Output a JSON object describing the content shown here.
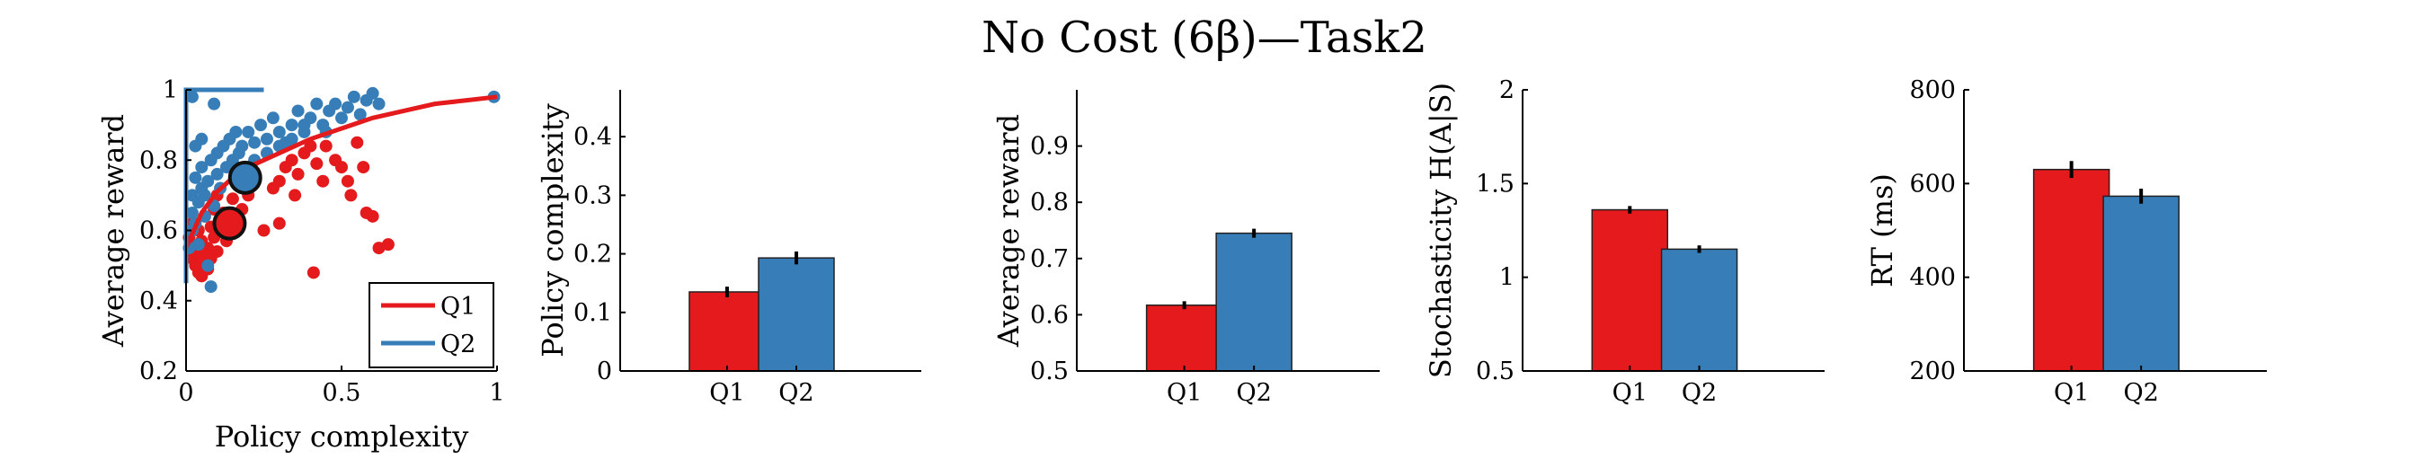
{
  "figure_title": "No Cost (6β)—Task2",
  "colors": {
    "Q1": "#e41a1c",
    "Q2": "#377eb8",
    "axis": "#000000",
    "marker_edge": "#111111"
  },
  "chart_data": [
    {
      "type": "scatter",
      "title": "",
      "xlabel": "Policy complexity",
      "ylabel": "Average reward",
      "xlim": [
        0,
        1
      ],
      "ylim": [
        0.2,
        1
      ],
      "xticks": [
        "0",
        "0.5",
        "1"
      ],
      "yticks": [
        "0.2",
        "0.4",
        "0.6",
        "0.8",
        "1"
      ],
      "legend": {
        "placement": "bottom-right",
        "entries": [
          "Q1",
          "Q2"
        ]
      },
      "series": [
        {
          "name": "Q1",
          "points": [
            [
              0.01,
              0.58
            ],
            [
              0.02,
              0.52
            ],
            [
              0.02,
              0.62
            ],
            [
              0.03,
              0.5
            ],
            [
              0.03,
              0.55
            ],
            [
              0.04,
              0.48
            ],
            [
              0.04,
              0.6
            ],
            [
              0.05,
              0.47
            ],
            [
              0.05,
              0.53
            ],
            [
              0.05,
              0.57
            ],
            [
              0.06,
              0.5
            ],
            [
              0.06,
              0.64
            ],
            [
              0.07,
              0.49
            ],
            [
              0.07,
              0.55
            ],
            [
              0.08,
              0.52
            ],
            [
              0.08,
              0.61
            ],
            [
              0.09,
              0.58
            ],
            [
              0.09,
              0.66
            ],
            [
              0.1,
              0.54
            ],
            [
              0.1,
              0.7
            ],
            [
              0.11,
              0.6
            ],
            [
              0.12,
              0.65
            ],
            [
              0.13,
              0.57
            ],
            [
              0.14,
              0.63
            ],
            [
              0.15,
              0.69
            ],
            [
              0.16,
              0.6
            ],
            [
              0.17,
              0.74
            ],
            [
              0.18,
              0.66
            ],
            [
              0.2,
              0.7
            ],
            [
              0.22,
              0.76
            ],
            [
              0.25,
              0.6
            ],
            [
              0.28,
              0.72
            ],
            [
              0.3,
              0.74
            ],
            [
              0.32,
              0.78
            ],
            [
              0.34,
              0.8
            ],
            [
              0.36,
              0.76
            ],
            [
              0.38,
              0.82
            ],
            [
              0.4,
              0.84
            ],
            [
              0.41,
              0.48
            ],
            [
              0.42,
              0.79
            ],
            [
              0.45,
              0.84
            ],
            [
              0.48,
              0.8
            ],
            [
              0.5,
              0.78
            ],
            [
              0.52,
              0.74
            ],
            [
              0.55,
              0.85
            ],
            [
              0.57,
              0.78
            ],
            [
              0.58,
              0.65
            ],
            [
              0.6,
              0.64
            ],
            [
              0.62,
              0.55
            ],
            [
              0.65,
              0.56
            ],
            [
              0.3,
              0.62
            ],
            [
              0.35,
              0.7
            ],
            [
              0.44,
              0.74
            ],
            [
              0.53,
              0.7
            ]
          ]
        },
        {
          "name": "Q2",
          "points": [
            [
              0.01,
              0.55
            ],
            [
              0.02,
              0.6
            ],
            [
              0.02,
              0.65
            ],
            [
              0.02,
              0.7
            ],
            [
              0.03,
              0.75
            ],
            [
              0.03,
              0.62
            ],
            [
              0.04,
              0.68
            ],
            [
              0.04,
              0.56
            ],
            [
              0.05,
              0.72
            ],
            [
              0.05,
              0.78
            ],
            [
              0.06,
              0.64
            ],
            [
              0.06,
              0.7
            ],
            [
              0.07,
              0.5
            ],
            [
              0.07,
              0.74
            ],
            [
              0.08,
              0.44
            ],
            [
              0.08,
              0.8
            ],
            [
              0.09,
              0.67
            ],
            [
              0.1,
              0.76
            ],
            [
              0.1,
              0.82
            ],
            [
              0.11,
              0.72
            ],
            [
              0.12,
              0.84
            ],
            [
              0.13,
              0.78
            ],
            [
              0.14,
              0.86
            ],
            [
              0.15,
              0.8
            ],
            [
              0.16,
              0.88
            ],
            [
              0.17,
              0.82
            ],
            [
              0.18,
              0.84
            ],
            [
              0.2,
              0.88
            ],
            [
              0.22,
              0.85
            ],
            [
              0.24,
              0.9
            ],
            [
              0.26,
              0.86
            ],
            [
              0.28,
              0.92
            ],
            [
              0.3,
              0.88
            ],
            [
              0.32,
              0.85
            ],
            [
              0.34,
              0.9
            ],
            [
              0.36,
              0.94
            ],
            [
              0.38,
              0.9
            ],
            [
              0.4,
              0.92
            ],
            [
              0.42,
              0.96
            ],
            [
              0.44,
              0.9
            ],
            [
              0.46,
              0.94
            ],
            [
              0.48,
              0.96
            ],
            [
              0.5,
              0.92
            ],
            [
              0.52,
              0.95
            ],
            [
              0.54,
              0.98
            ],
            [
              0.56,
              0.93
            ],
            [
              0.58,
              0.97
            ],
            [
              0.6,
              0.99
            ],
            [
              0.62,
              0.96
            ],
            [
              0.22,
              0.8
            ],
            [
              0.26,
              0.82
            ],
            [
              0.3,
              0.84
            ],
            [
              0.34,
              0.86
            ],
            [
              0.38,
              0.88
            ],
            [
              0.45,
              0.88
            ],
            [
              0.02,
              0.98
            ],
            [
              0.09,
              0.96
            ],
            [
              0.99,
              0.98
            ],
            [
              0.03,
              0.84
            ],
            [
              0.05,
              0.86
            ]
          ]
        }
      ],
      "curves": [
        {
          "series": "Q1",
          "x": [
            0.0,
            0.05,
            0.1,
            0.15,
            0.2,
            0.3,
            0.4,
            0.5,
            0.6,
            0.7,
            0.8,
            0.9,
            1.0
          ],
          "y": [
            0.55,
            0.65,
            0.71,
            0.75,
            0.78,
            0.82,
            0.86,
            0.89,
            0.92,
            0.94,
            0.96,
            0.97,
            0.98
          ]
        },
        {
          "series": "Q2",
          "x": [
            0.0,
            0.0,
            0.25
          ],
          "y": [
            0.45,
            1.0,
            1.0
          ]
        }
      ],
      "means": [
        {
          "series": "Q1",
          "x": 0.14,
          "y": 0.62
        },
        {
          "series": "Q2",
          "x": 0.19,
          "y": 0.75
        }
      ]
    },
    {
      "type": "bar",
      "title": "",
      "xlabel": "",
      "ylabel": "Policy complexity",
      "categories": [
        "Q1",
        "Q2"
      ],
      "values": [
        0.135,
        0.193
      ],
      "errors": [
        0.009,
        0.011
      ],
      "ylim": [
        0,
        0.48
      ],
      "yticks": [
        "0",
        "0.1",
        "0.2",
        "0.3",
        "0.4"
      ]
    },
    {
      "type": "bar",
      "title": "",
      "xlabel": "",
      "ylabel": "Average reward",
      "categories": [
        "Q1",
        "Q2"
      ],
      "values": [
        0.617,
        0.745
      ],
      "errors": [
        0.007,
        0.008
      ],
      "ylim": [
        0.5,
        1.0
      ],
      "yticks": [
        "0.5",
        "0.6",
        "0.7",
        "0.8",
        "0.9"
      ]
    },
    {
      "type": "bar",
      "title": "",
      "xlabel": "",
      "ylabel": "Stochasticity H(A|S)",
      "categories": [
        "Q1",
        "Q2"
      ],
      "values": [
        1.36,
        1.15
      ],
      "errors": [
        0.02,
        0.02
      ],
      "ylim": [
        0.5,
        2.0
      ],
      "yticks": [
        "0.5",
        "1",
        "1.5",
        "2"
      ]
    },
    {
      "type": "bar",
      "title": "",
      "xlabel": "",
      "ylabel": "RT (ms)",
      "categories": [
        "Q1",
        "Q2"
      ],
      "values": [
        630,
        573
      ],
      "errors": [
        18,
        16
      ],
      "ylim": [
        200,
        800
      ],
      "yticks": [
        "200",
        "400",
        "600",
        "800"
      ]
    }
  ]
}
